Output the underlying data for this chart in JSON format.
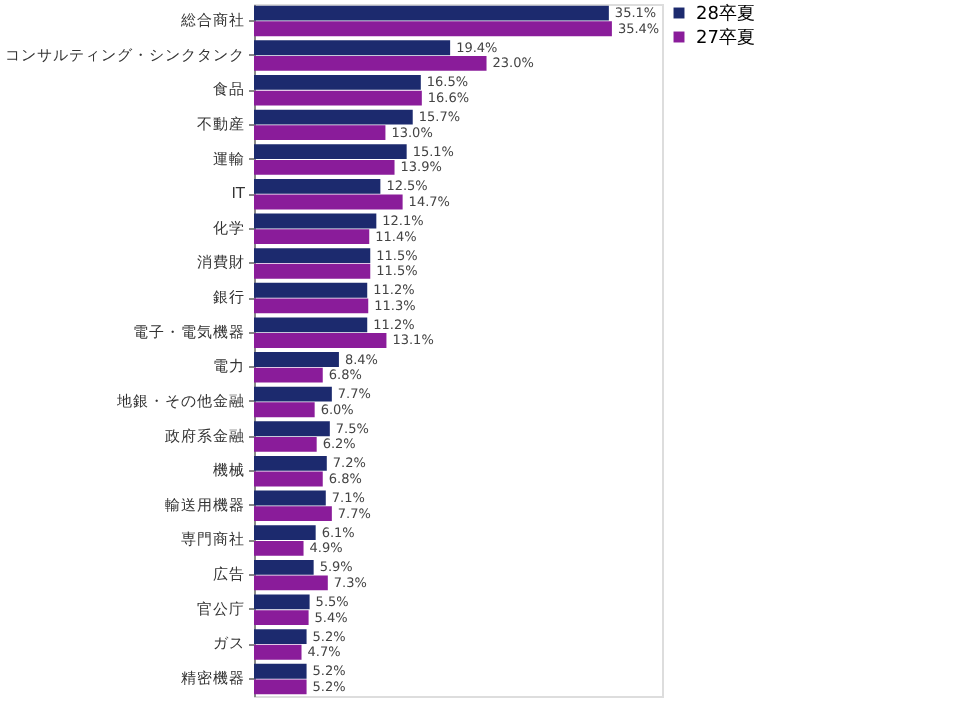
{
  "chart_data": {
    "type": "bar",
    "orientation": "horizontal",
    "legend": "right",
    "grid": false,
    "categories": [
      "総合商社",
      "コンサルティング・シンクタンク",
      "食品",
      "不動産",
      "運輸",
      "IT",
      "化学",
      "消費財",
      "銀行",
      "電子・電気機器",
      "電力",
      "地銀・その他金融",
      "政府系金融",
      "機械",
      "輸送用機器",
      "専門商社",
      "広告",
      "官公庁",
      "ガス",
      "精密機器"
    ],
    "series": [
      {
        "name": "28卒夏",
        "color": "#1c2a6e",
        "values": [
          35.1,
          19.4,
          16.5,
          15.7,
          15.1,
          12.5,
          12.1,
          11.5,
          11.2,
          11.2,
          8.4,
          7.7,
          7.5,
          7.2,
          7.1,
          6.1,
          5.9,
          5.5,
          5.2,
          5.2
        ],
        "value_labels": [
          "35.1%",
          "19.4%",
          "16.5%",
          "15.7%",
          "15.1%",
          "12.5%",
          "12.1%",
          "11.5%",
          "11.2%",
          "11.2%",
          "8.4%",
          "7.7%",
          "7.5%",
          "7.2%",
          "7.1%",
          "6.1%",
          "5.9%",
          "5.5%",
          "5.2%",
          "5.2%"
        ]
      },
      {
        "name": "27卒夏",
        "color": "#8a1c9a",
        "values": [
          35.4,
          23.0,
          16.6,
          13.0,
          13.9,
          14.7,
          11.4,
          11.5,
          11.3,
          13.1,
          6.8,
          6.0,
          6.2,
          6.8,
          7.7,
          4.9,
          7.3,
          5.4,
          4.7,
          5.2
        ],
        "value_labels": [
          "35.4%",
          "23.0%",
          "16.6%",
          "13.0%",
          "13.9%",
          "14.7%",
          "11.4%",
          "11.5%",
          "11.3%",
          "13.1%",
          "6.8%",
          "6.0%",
          "6.2%",
          "6.8%",
          "7.7%",
          "4.9%",
          "7.3%",
          "5.4%",
          "4.7%",
          "5.2%"
        ]
      }
    ]
  }
}
